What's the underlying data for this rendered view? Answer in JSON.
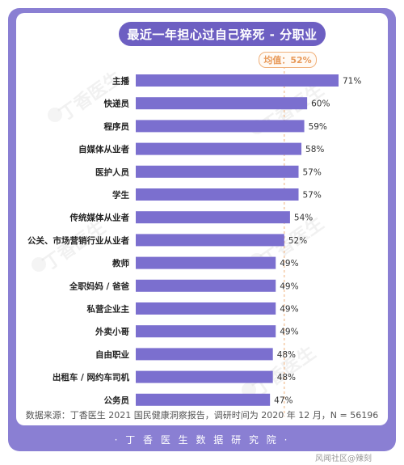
{
  "title": "最近一年担心过自己猝死 - 分职业",
  "mean_label": "均值：52%",
  "source": "数据来源：丁香医生 2021 国民健康洞察报告，调研时间为 2020 年 12 月，N = 56196",
  "footer": "· 丁 香 医 生 数 据 研 究 院 ·",
  "watermark": "丁香医生",
  "corner_text": "风闻社区@辣刻",
  "colors": {
    "bar": "#7b6fcf",
    "frame": "#8a7fd3",
    "title_bg": "#6d5fc2",
    "mean": "#f0b07a"
  },
  "chart_data": {
    "type": "bar",
    "orientation": "horizontal",
    "title": "最近一年担心过自己猝死 - 分职业",
    "unit": "%",
    "mean": 52,
    "xlim": [
      0,
      75
    ],
    "categories": [
      "主播",
      "快递员",
      "程序员",
      "自媒体从业者",
      "医护人员",
      "学生",
      "传统媒体从业者",
      "公关、市场营销行业从业者",
      "教师",
      "全职妈妈 / 爸爸",
      "私营企业主",
      "外卖小哥",
      "自由职业",
      "出租车 / 网约车司机",
      "公务员"
    ],
    "values": [
      71,
      60,
      59,
      58,
      57,
      57,
      54,
      52,
      49,
      49,
      49,
      49,
      48,
      48,
      47
    ],
    "value_labels": [
      "71%",
      "60%",
      "59%",
      "58%",
      "57%",
      "57%",
      "54%",
      "52%",
      "49%",
      "49%",
      "49%",
      "49%",
      "48%",
      "48%",
      "47%"
    ]
  }
}
